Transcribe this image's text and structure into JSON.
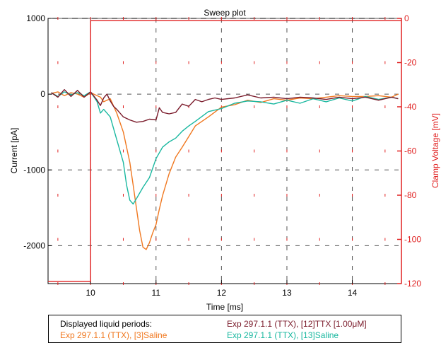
{
  "chart_data": {
    "type": "line",
    "title": "Sweep plot",
    "xlabel": "Time [ms]",
    "ylabel": "Current [pA]",
    "y2label": "Clamp Voltage [mV]",
    "xlim": [
      9.35,
      14.75
    ],
    "ylim": [
      -2500,
      1000
    ],
    "y2lim": [
      -120,
      0
    ],
    "x_ticks": [
      10,
      11,
      12,
      13,
      14
    ],
    "y_ticks": [
      1000,
      0,
      -1000,
      -2000
    ],
    "y2_ticks": [
      0,
      -20,
      -40,
      -60,
      -80,
      -100,
      -120
    ],
    "grid": true,
    "colors": {
      "saline3": "#f07820",
      "saline13": "#1ab8a0",
      "ttx12": "#7a1a2a",
      "voltage": "#e02020",
      "y2axis": "#e02020"
    },
    "series": [
      {
        "name": "Exp 297.1.1 (TTX), [3]Saline",
        "axis": "left",
        "color_key": "saline3",
        "x": [
          9.4,
          9.5,
          9.6,
          9.7,
          9.8,
          9.9,
          10.0,
          10.1,
          10.15,
          10.2,
          10.3,
          10.4,
          10.5,
          10.6,
          10.65,
          10.7,
          10.75,
          10.8,
          10.85,
          10.9,
          10.95,
          11.0,
          11.05,
          11.1,
          11.2,
          11.3,
          11.4,
          11.5,
          11.6,
          11.8,
          12.0,
          12.2,
          12.4,
          12.6,
          12.8,
          13.0,
          13.2,
          13.4,
          13.6,
          13.8,
          14.0,
          14.2,
          14.4,
          14.6,
          14.7
        ],
        "y": [
          10,
          30,
          -20,
          20,
          0,
          -40,
          20,
          -20,
          -40,
          -100,
          -60,
          -250,
          -500,
          -900,
          -1200,
          -1500,
          -1800,
          -2020,
          -2050,
          -1960,
          -1830,
          -1720,
          -1520,
          -1340,
          -1050,
          -830,
          -700,
          -560,
          -420,
          -300,
          -170,
          -140,
          -80,
          -110,
          -60,
          -80,
          -50,
          -60,
          -40,
          -20,
          -30,
          -30,
          -20,
          -40,
          0
        ]
      },
      {
        "name": "Exp 297.1.1 (TTX), [13]Saline",
        "axis": "left",
        "color_key": "saline13",
        "x": [
          9.4,
          9.5,
          9.6,
          9.7,
          9.8,
          9.9,
          10.0,
          10.1,
          10.15,
          10.2,
          10.3,
          10.4,
          10.5,
          10.55,
          10.6,
          10.65,
          10.7,
          10.8,
          10.9,
          11.0,
          11.1,
          11.2,
          11.3,
          11.4,
          11.5,
          11.6,
          11.8,
          12.0,
          12.2,
          12.4,
          12.6,
          12.8,
          13.0,
          13.2,
          13.4,
          13.6,
          13.8,
          14.0,
          14.2,
          14.4,
          14.6,
          14.7
        ],
        "y": [
          20,
          -30,
          30,
          -10,
          20,
          -20,
          30,
          -100,
          -250,
          -200,
          -300,
          -600,
          -900,
          -1200,
          -1400,
          -1450,
          -1380,
          -1230,
          -1100,
          -850,
          -700,
          -630,
          -580,
          -490,
          -420,
          -360,
          -230,
          -190,
          -120,
          -90,
          -100,
          -130,
          -80,
          -120,
          -60,
          -100,
          -50,
          -90,
          -30,
          -70,
          -40,
          -60
        ]
      },
      {
        "name": "Exp 297.1.1 (TTX), [12]TTX [1.00μM]",
        "axis": "left",
        "color_key": "ttx12",
        "x": [
          9.4,
          9.5,
          9.6,
          9.7,
          9.8,
          9.9,
          10.0,
          10.1,
          10.15,
          10.2,
          10.25,
          10.3,
          10.35,
          10.4,
          10.5,
          10.6,
          10.7,
          10.8,
          10.9,
          11.0,
          11.05,
          11.1,
          11.2,
          11.3,
          11.4,
          11.5,
          11.6,
          11.7,
          11.8,
          11.9,
          12.0,
          12.2,
          12.4,
          12.6,
          12.8,
          13.0,
          13.2,
          13.4,
          13.6,
          13.8,
          14.0,
          14.2,
          14.4,
          14.6,
          14.7
        ],
        "y": [
          20,
          -40,
          60,
          -30,
          50,
          -40,
          30,
          -80,
          -150,
          -50,
          0,
          -90,
          -160,
          -200,
          -300,
          -340,
          -370,
          -360,
          -330,
          -340,
          -180,
          -240,
          -260,
          -240,
          -130,
          -160,
          -70,
          -100,
          -70,
          -50,
          -70,
          -50,
          -10,
          -50,
          -40,
          -60,
          -40,
          -50,
          -70,
          -40,
          -60,
          -40,
          -80,
          -40,
          -60
        ]
      },
      {
        "name": "",
        "axis": "right",
        "color_key": "voltage",
        "x": [
          9.35,
          10.0,
          10.0,
          14.75
        ],
        "y": [
          -119,
          -119,
          -1,
          -1
        ]
      }
    ]
  },
  "legend": {
    "title": "Displayed liquid periods:",
    "items": [
      {
        "label": "Exp 297.1.1 (TTX), [3]Saline",
        "color_key": "saline3"
      },
      {
        "label": "Exp 297.1.1 (TTX), [12]TTX [1.00μM]",
        "color_key": "ttx12"
      },
      {
        "label": "Exp 297.1.1 (TTX), [13]Saline",
        "color_key": "saline13"
      }
    ]
  }
}
